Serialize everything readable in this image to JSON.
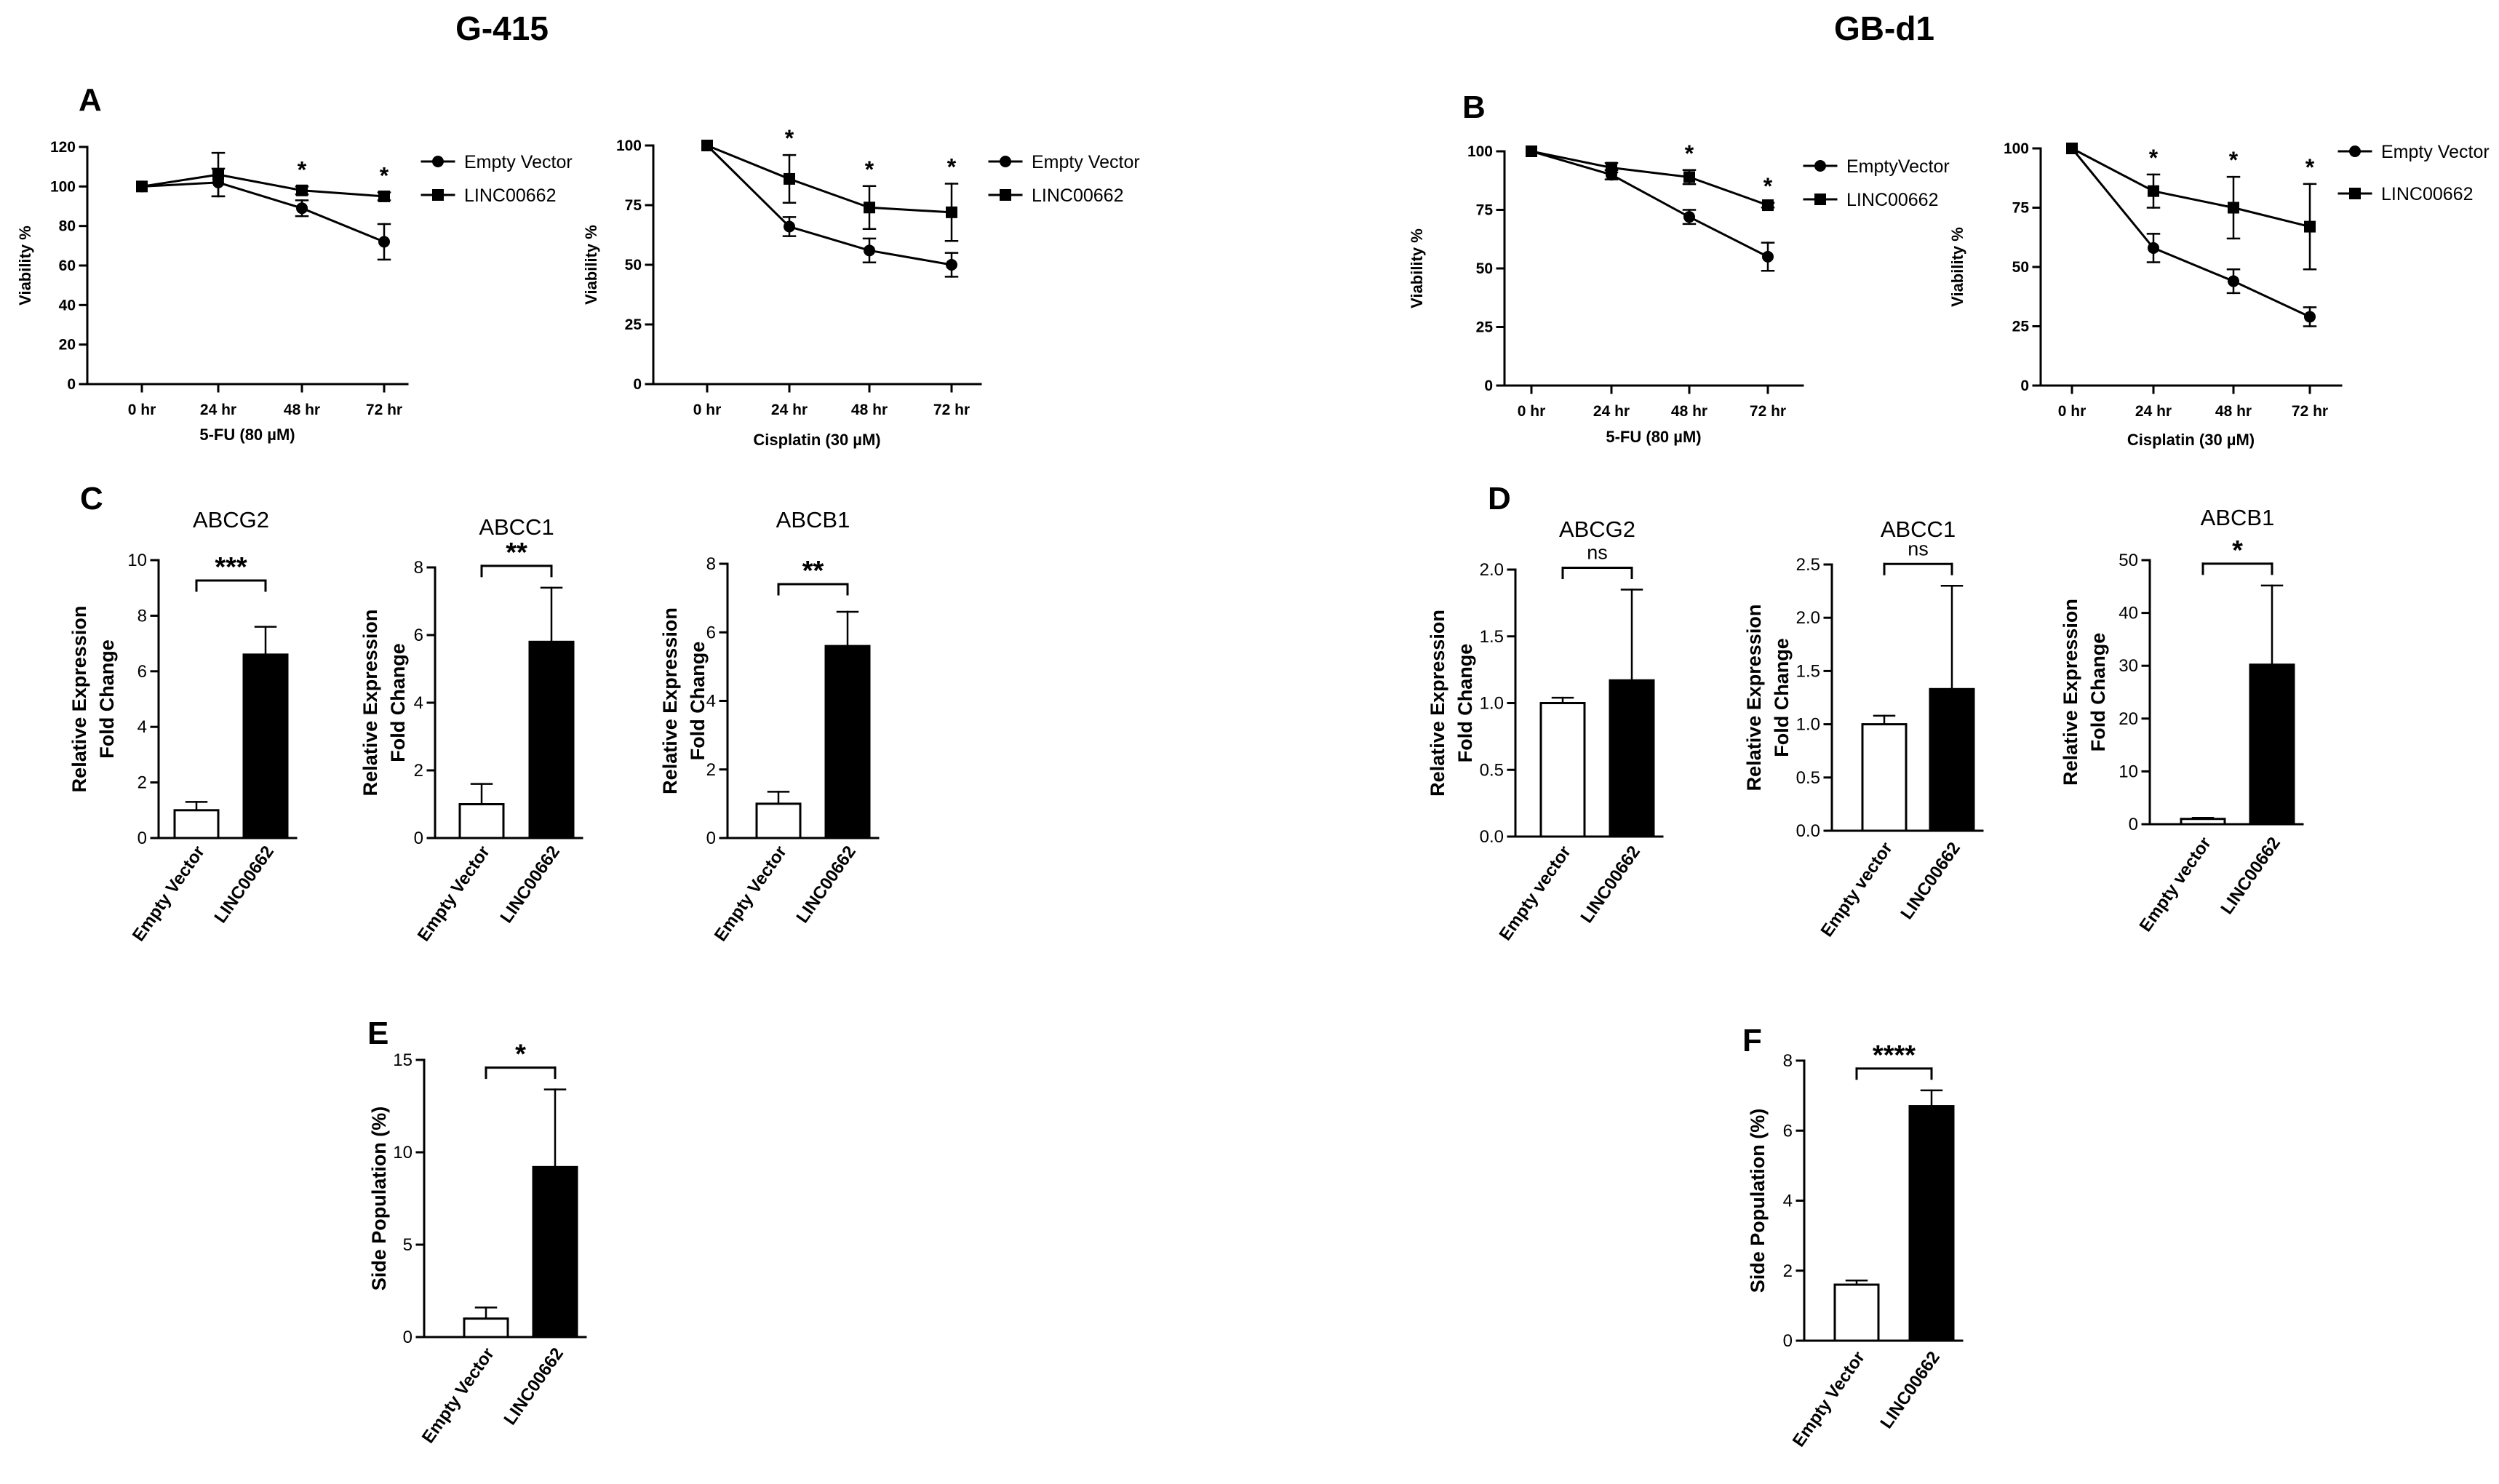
{
  "figure": {
    "left_title": "G-415",
    "right_title": "GB-d1"
  },
  "chart_data": [
    {
      "panel": "A",
      "type": "line",
      "xlabel": "5-FU (80 µM)",
      "ylabel": "Viability %",
      "categories": [
        "0 hr",
        "24 hr",
        "48 hr",
        "72 hr"
      ],
      "ylim": [
        0,
        120
      ],
      "yticks": [
        "0",
        "20",
        "40",
        "60",
        "80",
        "100",
        "120"
      ],
      "series": [
        {
          "name": "Empty Vector",
          "marker": "circle",
          "values": [
            100,
            102,
            89,
            72
          ],
          "errors": [
            0,
            7,
            4,
            9
          ]
        },
        {
          "name": "LINC00662",
          "marker": "square",
          "values": [
            100,
            106,
            98,
            95
          ],
          "errors": [
            0,
            11,
            2,
            2
          ]
        }
      ],
      "significance": [
        "",
        "",
        "*",
        "*"
      ]
    },
    {
      "panel": "A2",
      "type": "line",
      "xlabel": "Cisplatin (30 µM)",
      "ylabel": "Viability %",
      "categories": [
        "0 hr",
        "24 hr",
        "48 hr",
        "72 hr"
      ],
      "ylim": [
        0,
        100
      ],
      "yticks": [
        "0",
        "25",
        "50",
        "75",
        "100"
      ],
      "series": [
        {
          "name": "Empty Vector",
          "marker": "circle",
          "values": [
            100,
            66,
            56,
            50
          ],
          "errors": [
            0,
            4,
            5,
            5
          ]
        },
        {
          "name": "LINC00662",
          "marker": "square",
          "values": [
            100,
            86,
            74,
            72
          ],
          "errors": [
            0,
            10,
            9,
            12
          ]
        }
      ],
      "significance": [
        "",
        "*",
        "*",
        "*"
      ]
    },
    {
      "panel": "B",
      "type": "line",
      "xlabel": "5-FU (80 µM)",
      "ylabel": "Viability %",
      "categories": [
        "0 hr",
        "24 hr",
        "48 hr",
        "72 hr"
      ],
      "ylim": [
        0,
        100
      ],
      "yticks": [
        "0",
        "25",
        "50",
        "75",
        "100"
      ],
      "series": [
        {
          "name": "EmptyVector",
          "marker": "circle",
          "values": [
            100,
            90,
            72,
            55
          ],
          "errors": [
            0,
            2,
            3,
            6
          ]
        },
        {
          "name": "LINC00662",
          "marker": "square",
          "values": [
            100,
            93,
            89,
            77
          ],
          "errors": [
            0,
            2,
            3,
            1
          ]
        }
      ],
      "significance": [
        "",
        "",
        "*",
        "*"
      ]
    },
    {
      "panel": "B2",
      "type": "line",
      "xlabel": "Cisplatin (30 µM)",
      "ylabel": "Viability %",
      "categories": [
        "0 hr",
        "24 hr",
        "48 hr",
        "72 hr"
      ],
      "ylim": [
        0,
        100
      ],
      "yticks": [
        "0",
        "25",
        "50",
        "75",
        "100"
      ],
      "series": [
        {
          "name": "Empty Vector",
          "marker": "circle",
          "values": [
            100,
            58,
            44,
            29
          ],
          "errors": [
            0,
            6,
            5,
            4
          ]
        },
        {
          "name": "LINC00662",
          "marker": "square",
          "values": [
            100,
            82,
            75,
            67
          ],
          "errors": [
            0,
            7,
            13,
            18
          ]
        }
      ],
      "significance": [
        "",
        "*",
        "*",
        "*"
      ]
    },
    {
      "panel": "C1",
      "type": "bar",
      "title": "ABCG2",
      "ylabel": [
        "Relative Expression",
        "Fold  Change"
      ],
      "categories": [
        "Empty Vector",
        "LINC00662"
      ],
      "values": [
        1.0,
        6.6
      ],
      "errors": [
        0.3,
        1.0
      ],
      "ylim": [
        0,
        10
      ],
      "yticks": [
        "0",
        "2",
        "4",
        "6",
        "8",
        "10"
      ],
      "significance": "***"
    },
    {
      "panel": "C2",
      "type": "bar",
      "title": "ABCC1",
      "ylabel": [
        "Relative Expression",
        "Fold  Change"
      ],
      "categories": [
        "Empty Vector",
        "LINC00662"
      ],
      "values": [
        1.0,
        5.8
      ],
      "errors": [
        0.6,
        1.6
      ],
      "ylim": [
        0,
        8
      ],
      "yticks": [
        "0",
        "2",
        "4",
        "6",
        "8"
      ],
      "significance": "**"
    },
    {
      "panel": "C3",
      "type": "bar",
      "title": "ABCB1",
      "ylabel": [
        "Relative Expression",
        "Fold  Change"
      ],
      "categories": [
        "Empty Vector",
        "LINC00662"
      ],
      "values": [
        1.0,
        5.6
      ],
      "errors": [
        0.35,
        1.0
      ],
      "ylim": [
        0,
        8
      ],
      "yticks": [
        "0",
        "2",
        "4",
        "6",
        "8"
      ],
      "significance": "**"
    },
    {
      "panel": "D1",
      "type": "bar",
      "title": "ABCG2",
      "ylabel": [
        "Relative Expression",
        "Fold  Change"
      ],
      "categories": [
        "Empty vector",
        "LINC00662"
      ],
      "values": [
        1.0,
        1.17
      ],
      "errors": [
        0.04,
        0.68
      ],
      "ylim": [
        0,
        2.0
      ],
      "yticks": [
        "0.0",
        "0.5",
        "1.0",
        "1.5",
        "2.0"
      ],
      "significance": "ns"
    },
    {
      "panel": "D2",
      "type": "bar",
      "title": "ABCC1",
      "ylabel": [
        "Relative Expression",
        "Fold  Change"
      ],
      "categories": [
        "Empty vector",
        "LINC00662"
      ],
      "values": [
        1.0,
        1.33
      ],
      "errors": [
        0.08,
        0.97
      ],
      "ylim": [
        0,
        2.5
      ],
      "yticks": [
        "0.0",
        "0.5",
        "1.0",
        "1.5",
        "2.0",
        "2.5"
      ],
      "significance": "ns"
    },
    {
      "panel": "D3",
      "type": "bar",
      "title": "ABCB1",
      "ylabel": [
        "Relative Expression",
        "Fold  Change"
      ],
      "categories": [
        "Empty vector",
        "LINC00662"
      ],
      "values": [
        1.0,
        30.2
      ],
      "errors": [
        0.2,
        15.0
      ],
      "ylim": [
        0,
        50
      ],
      "yticks": [
        "0",
        "10",
        "20",
        "30",
        "40",
        "50"
      ],
      "significance": "*"
    },
    {
      "panel": "E",
      "type": "bar",
      "title": "",
      "ylabel": [
        "Side Population (%)"
      ],
      "categories": [
        "Empty Vector",
        "LINC00662"
      ],
      "values": [
        1.0,
        9.2
      ],
      "errors": [
        0.6,
        4.2
      ],
      "ylim": [
        0,
        15
      ],
      "yticks": [
        "0",
        "5",
        "10",
        "15"
      ],
      "significance": "*"
    },
    {
      "panel": "F",
      "type": "bar",
      "title": "",
      "ylabel": [
        "Side Population (%)"
      ],
      "categories": [
        "Empty Vector",
        "LINC00662"
      ],
      "values": [
        1.6,
        6.7
      ],
      "errors": [
        0.12,
        0.45
      ],
      "ylim": [
        0,
        8
      ],
      "yticks": [
        "0",
        "2",
        "4",
        "6",
        "8"
      ],
      "significance": "****"
    }
  ]
}
